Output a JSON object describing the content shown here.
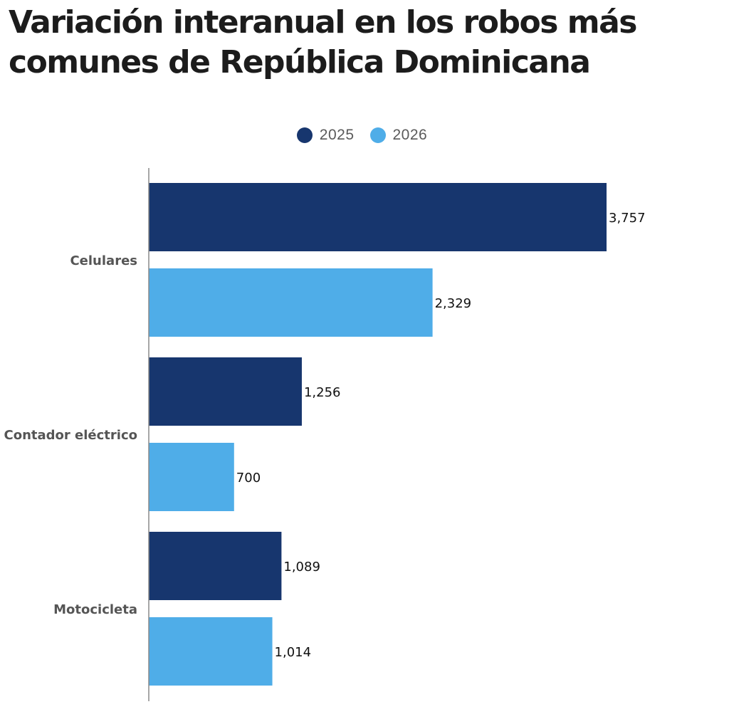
{
  "title": "Variación interanual en los robos más comunes de República Dominicana",
  "legend": [
    {
      "label": "2025",
      "color": "#17366e"
    },
    {
      "label": "2026",
      "color": "#4fade8"
    }
  ],
  "chart_data": {
    "type": "bar",
    "orientation": "horizontal",
    "title": "Variación interanual en los robos más comunes de República Dominicana",
    "categories": [
      "Celulares",
      "Contador eléctrico",
      "Motocicleta"
    ],
    "series": [
      {
        "name": "2025",
        "color": "#17366e",
        "values": [
          3757,
          1256,
          1089
        ],
        "labels": [
          "3,757",
          "1,256",
          "1,089"
        ]
      },
      {
        "name": "2026",
        "color": "#4fade8",
        "values": [
          2329,
          700,
          1014
        ],
        "labels": [
          "2,329",
          "700",
          "1,014"
        ]
      }
    ],
    "xlim": [
      0,
      3757
    ],
    "xlabel": "",
    "ylabel": "",
    "grid": false,
    "legend_position": "top-center"
  }
}
